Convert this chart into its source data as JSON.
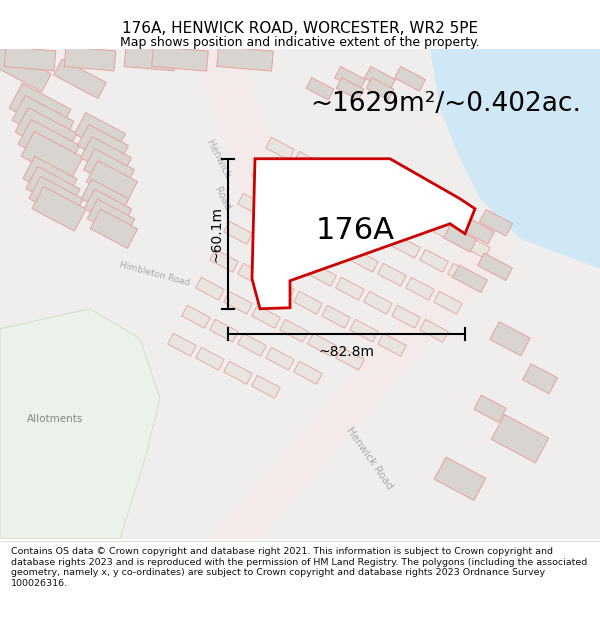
{
  "title": "176A, HENWICK ROAD, WORCESTER, WR2 5PE",
  "subtitle": "Map shows position and indicative extent of the property.",
  "area_label": "~1629m²/~0.402ac.",
  "property_label": "176A",
  "dim_horizontal": "~82.8m",
  "dim_vertical": "~60.1m",
  "footer": "Contains OS data © Crown copyright and database right 2021. This information is subject to Crown copyright and database rights 2023 and is reproduced with the permission of HM Land Registry. The polygons (including the associated geometry, namely x, y co-ordinates) are subject to Crown copyright and database rights 2023 Ordnance Survey 100026316.",
  "bg_color": "#f7f7f7",
  "map_bg": "#f0eeec",
  "road_color": "#fce8e8",
  "water_color": "#d0e8f5",
  "allotment_color": "#eaf2ea",
  "property_fill": "#ffffff",
  "property_edge": "#cc0000",
  "building_fill": "#d8d5d0",
  "building_edge": "#e8a0a0",
  "title_fontsize": 11,
  "subtitle_fontsize": 9,
  "area_fontsize": 19,
  "label_fontsize": 22,
  "dim_fontsize": 10,
  "footer_fontsize": 6.8
}
